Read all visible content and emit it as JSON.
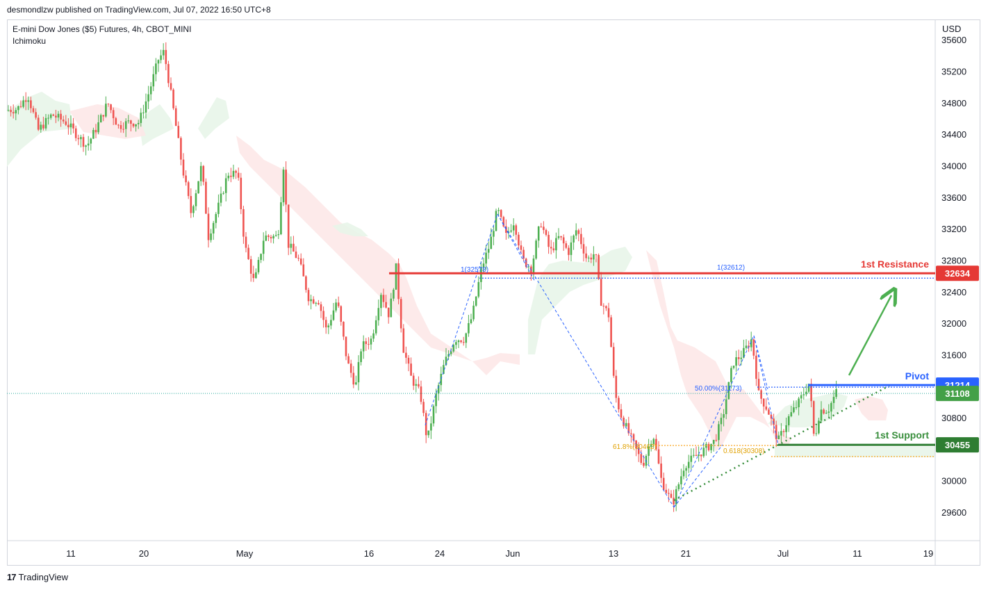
{
  "header": {
    "published": "desmondlzw published on TradingView.com, Jul 07, 2022 16:50 UTC+8"
  },
  "info": {
    "symbol": "E-mini Dow Jones ($5) Futures, 4h, CBOT_MINI",
    "indicator": "Ichimoku"
  },
  "currency": "USD",
  "footer": {
    "brand": "TradingView",
    "brand_icon": "tradingview-logo-icon"
  },
  "colors": {
    "up": "#26a69a",
    "up_body": "#4caf50",
    "down": "#ef5350",
    "resistance": "#e53935",
    "pivot": "#2962ff",
    "support": "#388e3c",
    "arrow": "#4caf50",
    "fib": "#f9a825",
    "cloud_bull": "#e8f5e9",
    "cloud_bear": "#fde8e8"
  },
  "chart_data": {
    "type": "candlestick",
    "title": "E-mini Dow Jones ($5) Futures, 4h, CBOT_MINI",
    "y_ticks": [
      35600,
      35200,
      34800,
      34400,
      34000,
      33600,
      33200,
      32800,
      32400,
      32000,
      31600,
      30800,
      30000,
      29600
    ],
    "x_ticks": [
      "11",
      "20",
      "May",
      "16",
      "24",
      "Jun",
      "13",
      "21",
      "Jul",
      "11",
      "19"
    ],
    "ylim": [
      29320,
      35800
    ],
    "price_path": [
      [
        0,
        34700
      ],
      [
        25,
        34720
      ],
      [
        40,
        34900
      ],
      [
        55,
        34450
      ],
      [
        75,
        34650
      ],
      [
        95,
        34550
      ],
      [
        110,
        34400
      ],
      [
        125,
        34250
      ],
      [
        140,
        34500
      ],
      [
        155,
        34800
      ],
      [
        170,
        34500
      ],
      [
        185,
        34550
      ],
      [
        200,
        34550
      ],
      [
        215,
        34950
      ],
      [
        228,
        35350
      ],
      [
        236,
        35450
      ],
      [
        248,
        34800
      ],
      [
        262,
        34000
      ],
      [
        275,
        33400
      ],
      [
        290,
        34000
      ],
      [
        300,
        33100
      ],
      [
        315,
        33500
      ],
      [
        328,
        33900
      ],
      [
        342,
        33900
      ],
      [
        352,
        33000
      ],
      [
        366,
        32500
      ],
      [
        380,
        33100
      ],
      [
        400,
        33100
      ],
      [
        408,
        34000
      ],
      [
        415,
        33000
      ],
      [
        430,
        32800
      ],
      [
        445,
        32300
      ],
      [
        458,
        32300
      ],
      [
        470,
        31900
      ],
      [
        485,
        32300
      ],
      [
        500,
        31500
      ],
      [
        512,
        31200
      ],
      [
        520,
        31700
      ],
      [
        535,
        31800
      ],
      [
        548,
        32400
      ],
      [
        560,
        32100
      ],
      [
        570,
        32700
      ],
      [
        580,
        31700
      ],
      [
        592,
        31300
      ],
      [
        605,
        31100
      ],
      [
        615,
        30500
      ],
      [
        628,
        31100
      ],
      [
        640,
        31500
      ],
      [
        655,
        31800
      ],
      [
        668,
        31800
      ],
      [
        680,
        32100
      ],
      [
        693,
        32700
      ],
      [
        705,
        33000
      ],
      [
        716,
        33450
      ],
      [
        728,
        33100
      ],
      [
        740,
        33300
      ],
      [
        752,
        32800
      ],
      [
        765,
        32700
      ],
      [
        778,
        33300
      ],
      [
        792,
        32900
      ],
      [
        805,
        33100
      ],
      [
        818,
        32900
      ],
      [
        830,
        33200
      ],
      [
        845,
        32800
      ],
      [
        857,
        32900
      ],
      [
        864,
        32300
      ],
      [
        876,
        32100
      ],
      [
        885,
        31100
      ],
      [
        895,
        30800
      ],
      [
        910,
        30500
      ],
      [
        925,
        30200
      ],
      [
        940,
        30600
      ],
      [
        952,
        30000
      ],
      [
        968,
        29700
      ],
      [
        985,
        30200
      ],
      [
        1000,
        30300
      ],
      [
        1015,
        30400
      ],
      [
        1028,
        30500
      ],
      [
        1040,
        30800
      ],
      [
        1055,
        31500
      ],
      [
        1068,
        31600
      ],
      [
        1082,
        31800
      ],
      [
        1092,
        31100
      ],
      [
        1105,
        30900
      ],
      [
        1120,
        30500
      ],
      [
        1135,
        30800
      ],
      [
        1150,
        31000
      ],
      [
        1165,
        31250
      ],
      [
        1172,
        30500
      ],
      [
        1180,
        30900
      ],
      [
        1192,
        30900
      ],
      [
        1205,
        31150
      ]
    ],
    "levels": [
      {
        "name": "1st Resistance",
        "value": 32634
      },
      {
        "name": "Pivot",
        "value": 31214
      },
      {
        "name": "1st Support",
        "value": 30455
      },
      {
        "name": "last",
        "value": 31108
      }
    ],
    "annotations": [
      {
        "text": "1(32578)"
      },
      {
        "text": "1(32612)"
      },
      {
        "text": "50.00%(31173)"
      },
      {
        "text": "61.8%(30462)"
      },
      {
        "text": "0.618(30308)"
      }
    ]
  }
}
